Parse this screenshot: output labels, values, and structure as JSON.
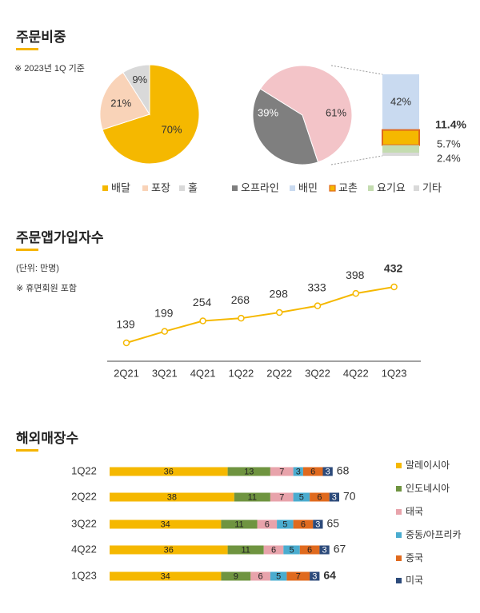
{
  "sections": {
    "order_share": {
      "title": "주문비중",
      "note": "※ 2023년 1Q 기준"
    },
    "subscribers": {
      "title": "주문앱가입자수",
      "unit_note": "(단위: 만명)",
      "note": "※ 휴면회원 포함"
    },
    "overseas": {
      "title": "해외매장수"
    }
  },
  "chart_data": [
    {
      "type": "pie",
      "slices": [
        {
          "name": "배달",
          "value": 70,
          "label": "70%",
          "color": "#f5b800"
        },
        {
          "name": "포장",
          "value": 21,
          "label": "21%",
          "color": "#f9d3b8"
        },
        {
          "name": "홀",
          "value": 9,
          "label": "9%",
          "color": "#d9d9d9"
        }
      ]
    },
    {
      "type": "pie",
      "slices": [
        {
          "name": "오프라인",
          "value": 39,
          "label": "39%",
          "color": "#7f7f7f"
        },
        {
          "name": "배민",
          "value": 61,
          "label": "61%",
          "color": "#f3c4c8"
        }
      ],
      "breakdown": [
        {
          "name": "배민",
          "value": 42,
          "label": "42%",
          "color": "#c9daf0"
        },
        {
          "name": "교촌",
          "value": 11.4,
          "label": "11.4%",
          "color": "#f5b800",
          "highlight": true
        },
        {
          "name": "요기요",
          "value": 5.7,
          "label": "5.7%",
          "color": "#c4dcb0"
        },
        {
          "name": "기타",
          "value": 2.4,
          "label": "2.4%",
          "color": "#d9d9d9"
        }
      ],
      "legend": [
        {
          "name": "오프라인",
          "color": "#7f7f7f"
        },
        {
          "name": "배민",
          "color": "#c9daf0"
        },
        {
          "name": "교촌",
          "color": "#f5b800"
        },
        {
          "name": "요기요",
          "color": "#c4dcb0"
        },
        {
          "name": "기타",
          "color": "#d9d9d9"
        }
      ]
    },
    {
      "type": "line",
      "categories": [
        "2Q21",
        "3Q21",
        "4Q21",
        "1Q22",
        "2Q22",
        "3Q22",
        "4Q22",
        "1Q23"
      ],
      "values": [
        139,
        199,
        254,
        268,
        298,
        333,
        398,
        432
      ],
      "highlight_last": true,
      "color": "#f5b800"
    },
    {
      "type": "bar",
      "orientation": "horizontal",
      "stacked": true,
      "categories": [
        "1Q22",
        "2Q22",
        "3Q22",
        "4Q22",
        "1Q23"
      ],
      "totals": [
        68,
        70,
        65,
        67,
        64
      ],
      "series": [
        {
          "name": "말레이시아",
          "color": "#f5b800",
          "values": [
            36,
            38,
            34,
            36,
            34
          ]
        },
        {
          "name": "인도네시아",
          "color": "#6f9440",
          "values": [
            13,
            11,
            11,
            11,
            9
          ]
        },
        {
          "name": "태국",
          "color": "#e8a3ab",
          "values": [
            7,
            7,
            6,
            6,
            6
          ]
        },
        {
          "name": "중동/아프리카",
          "color": "#4aaccf",
          "values": [
            3,
            5,
            5,
            5,
            5
          ]
        },
        {
          "name": "중국",
          "color": "#e06a1e",
          "values": [
            6,
            6,
            6,
            6,
            7
          ]
        },
        {
          "name": "미국",
          "color": "#2c4a7a",
          "values": [
            3,
            3,
            3,
            3,
            3
          ]
        }
      ]
    }
  ]
}
